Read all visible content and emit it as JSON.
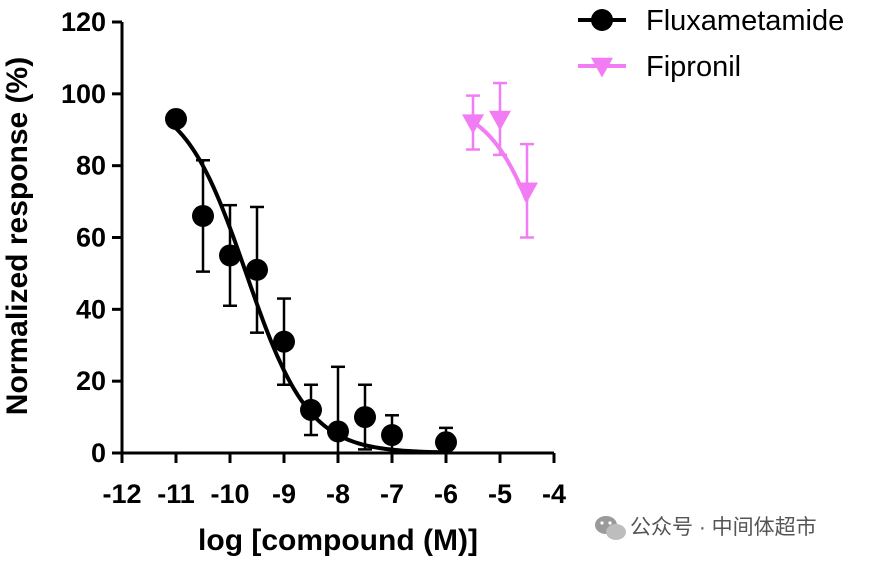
{
  "chart_data": {
    "type": "scatter",
    "xlabel": "log [compound (M)]",
    "ylabel": "Normalized response (%)",
    "xlim": [
      -12,
      -4
    ],
    "ylim": [
      0,
      120
    ],
    "x_ticks": [
      -12,
      -11,
      -10,
      -9,
      -8,
      -7,
      -6,
      -5,
      -4
    ],
    "y_ticks": [
      0,
      20,
      40,
      60,
      80,
      100,
      120
    ],
    "x_tick_labels": [
      "-12",
      "-11",
      "-10",
      "-9",
      "-8",
      "-7",
      "-6",
      "-5",
      "-4"
    ],
    "y_tick_labels": [
      "0",
      "20",
      "40",
      "60",
      "80",
      "100",
      "120"
    ],
    "grid": false,
    "legend_position": "top-right",
    "series": [
      {
        "name": "Fluxametamide",
        "color": "#000000",
        "marker": "circle",
        "points": [
          {
            "x": -11.0,
            "y": 93,
            "err": null
          },
          {
            "x": -10.5,
            "y": 66,
            "err": 15.5
          },
          {
            "x": -10.0,
            "y": 55,
            "err": 14
          },
          {
            "x": -9.5,
            "y": 51,
            "err": 17.5
          },
          {
            "x": -9.0,
            "y": 31,
            "err": 12
          },
          {
            "x": -8.5,
            "y": 12,
            "err": 7
          },
          {
            "x": -8.0,
            "y": 6,
            "err": 18
          },
          {
            "x": -7.5,
            "y": 10,
            "err": 9
          },
          {
            "x": -7.0,
            "y": 5,
            "err": 5.5
          },
          {
            "x": -6.0,
            "y": 3,
            "err": 4
          }
        ],
        "fit": {
          "bottom": 0,
          "top": 100,
          "log_ic50": -9.7,
          "hill_slope": -0.75,
          "x_from": -11.0,
          "x_to": -6.0
        }
      },
      {
        "name": "Fipronil",
        "color": "#f27cf4",
        "marker": "triangle-down",
        "points": [
          {
            "x": -5.5,
            "y": 92,
            "err": 7.5
          },
          {
            "x": -5.0,
            "y": 93,
            "err": 10
          },
          {
            "x": -4.5,
            "y": 73,
            "err": 13
          }
        ],
        "fit": {
          "bottom": 0,
          "top": 98,
          "log_ic50": -4.0,
          "hill_slope": -0.8,
          "x_from": -5.5,
          "x_to": -4.5
        }
      }
    ]
  },
  "watermark": {
    "text": "公众号 · 中间体超市",
    "icon": "wechat-icon"
  }
}
